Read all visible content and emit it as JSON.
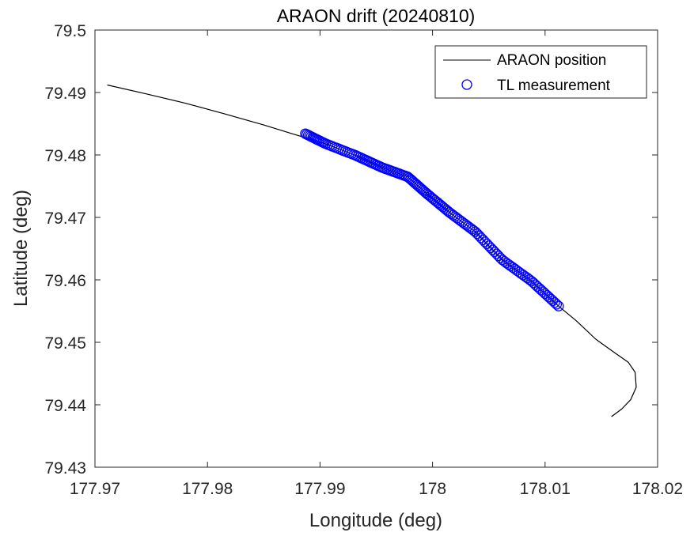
{
  "chart_data": {
    "type": "line",
    "title": "ARAON drift (20240810)",
    "xlabel": "Longitude (deg)",
    "ylabel": "Latitude (deg)",
    "xlim": [
      177.97,
      178.02
    ],
    "ylim": [
      79.43,
      79.5
    ],
    "xticks": [
      177.97,
      177.98,
      177.99,
      178.0,
      178.01,
      178.02
    ],
    "xtick_labels": [
      "177.97",
      "177.98",
      "177.99",
      "178",
      "178.01",
      "178.02"
    ],
    "yticks": [
      79.43,
      79.44,
      79.45,
      79.46,
      79.47,
      79.48,
      79.49,
      79.5
    ],
    "ytick_labels": [
      "79.43",
      "79.44",
      "79.45",
      "79.46",
      "79.47",
      "79.48",
      "79.49",
      "79.5"
    ],
    "grid": false,
    "legend_location": "top-right",
    "series": [
      {
        "name": "ARAON position",
        "style": "line",
        "color": "#000000",
        "x": [
          177.9711,
          177.9745,
          177.978,
          177.9815,
          177.985,
          177.9875,
          177.9905,
          177.9932,
          177.9955,
          177.9978,
          177.9995,
          178.0015,
          178.0038,
          178.0062,
          178.0088,
          178.0112,
          178.0128,
          178.0145,
          178.0162,
          178.0174,
          178.018,
          178.0181,
          178.0176,
          178.0168,
          178.0159
        ],
        "y": [
          79.4912,
          79.4898,
          79.4883,
          79.4866,
          79.4848,
          79.4834,
          79.4818,
          79.4799,
          79.478,
          79.4765,
          79.4738,
          79.4708,
          79.4677,
          79.4632,
          79.4598,
          79.4558,
          79.4534,
          79.4505,
          79.4483,
          79.4468,
          79.4452,
          79.4428,
          79.4408,
          79.4393,
          79.4381
        ]
      },
      {
        "name": "TL measurement",
        "style": "marker",
        "marker": "circle",
        "color": "#0000ff",
        "x": [
          177.9887,
          177.9905,
          177.9932,
          177.9955,
          177.9978,
          177.9995,
          178.0015,
          178.0038,
          178.0062,
          178.0088,
          178.0112
        ],
        "y": [
          79.4834,
          79.4818,
          79.4799,
          79.478,
          79.4765,
          79.4738,
          79.4708,
          79.4677,
          79.4632,
          79.4598,
          79.4558
        ]
      }
    ]
  }
}
